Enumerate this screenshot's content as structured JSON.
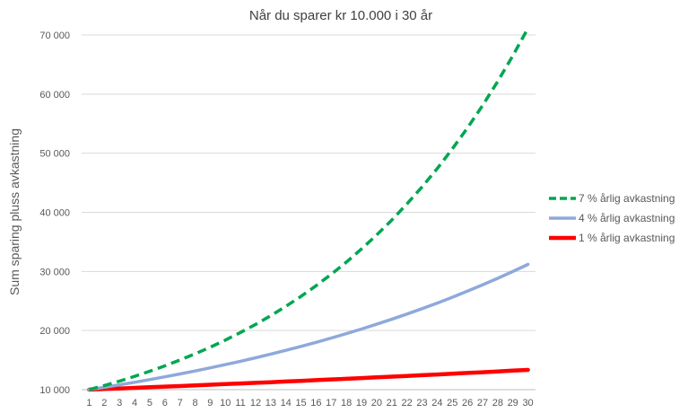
{
  "chart_data": {
    "type": "line",
    "title": "Når du sparer kr 10.000 i 30 år",
    "xlabel": "",
    "ylabel": "Sum sparing pluss avkastning",
    "categories": [
      "1",
      "2",
      "3",
      "4",
      "5",
      "6",
      "7",
      "8",
      "9",
      "10",
      "11",
      "12",
      "13",
      "14",
      "15",
      "16",
      "17",
      "18",
      "19",
      "20",
      "21",
      "22",
      "23",
      "24",
      "25",
      "26",
      "27",
      "28",
      "29",
      "30"
    ],
    "y_ticks": [
      "10 000",
      "20 000",
      "30 000",
      "40 000",
      "50 000",
      "60 000",
      "70 000"
    ],
    "ylim": [
      10000,
      70000
    ],
    "grid": true,
    "legend_position": "right",
    "series": [
      {
        "name": "7 % årlig avkastning",
        "color": "#00a651",
        "style": "dashed",
        "values": [
          10000,
          10700,
          11449,
          12250,
          13108,
          14026,
          15007,
          16058,
          17182,
          18385,
          19672,
          21049,
          22522,
          24098,
          25785,
          27590,
          29522,
          31588,
          33799,
          36165,
          38697,
          41406,
          44304,
          47405,
          50724,
          54274,
          58074,
          62139,
          66488,
          71143
        ]
      },
      {
        "name": "4 % årlig avkastning",
        "color": "#8ea9db",
        "style": "solid",
        "values": [
          10000,
          10400,
          10816,
          11249,
          11699,
          12167,
          12653,
          13159,
          13686,
          14233,
          14802,
          15395,
          16010,
          16651,
          17317,
          18009,
          18730,
          19479,
          20258,
          21068,
          21911,
          22788,
          23699,
          24647,
          25633,
          26658,
          27725,
          28834,
          29987,
          31187
        ]
      },
      {
        "name": "1 % årlig avkastning",
        "color": "#ff0000",
        "style": "solid",
        "values": [
          10000,
          10100,
          10201,
          10303,
          10406,
          10510,
          10615,
          10721,
          10829,
          10937,
          11046,
          11157,
          11268,
          11381,
          11495,
          11610,
          11726,
          11843,
          11961,
          12081,
          12202,
          12324,
          12447,
          12572,
          12697,
          12824,
          12953,
          13082,
          13213,
          13345
        ]
      }
    ]
  }
}
